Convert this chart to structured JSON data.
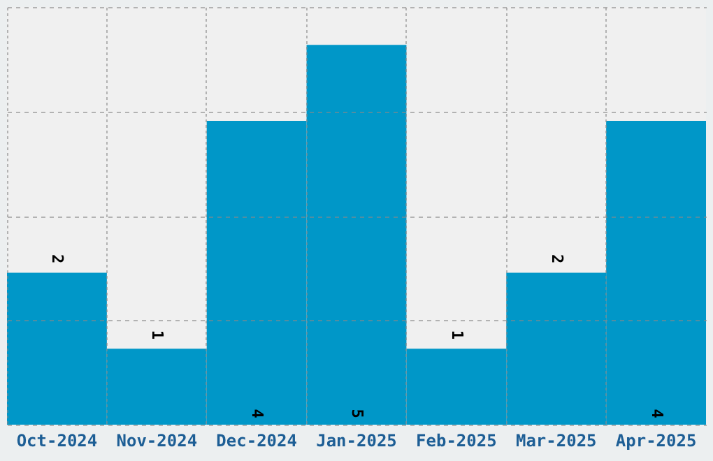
{
  "chart_data": {
    "type": "bar",
    "categories": [
      "Oct-2024",
      "Nov-2024",
      "Dec-2024",
      "Jan-2025",
      "Feb-2025",
      "Mar-2025",
      "Apr-2025"
    ],
    "values": [
      2,
      1,
      4,
      5,
      1,
      2,
      4
    ],
    "color": "#0097c8",
    "ylim": [
      0,
      5.5
    ],
    "yticks": [
      {
        "value": 0,
        "label": null
      },
      {
        "value": 1.375,
        "label": null
      },
      {
        "value": 2.75,
        "label": null
      },
      {
        "value": 4.125,
        "label": null
      },
      {
        "value": 5.5,
        "label": null
      }
    ],
    "tick_labels": "x",
    "grid": true,
    "data_labels": true
  }
}
